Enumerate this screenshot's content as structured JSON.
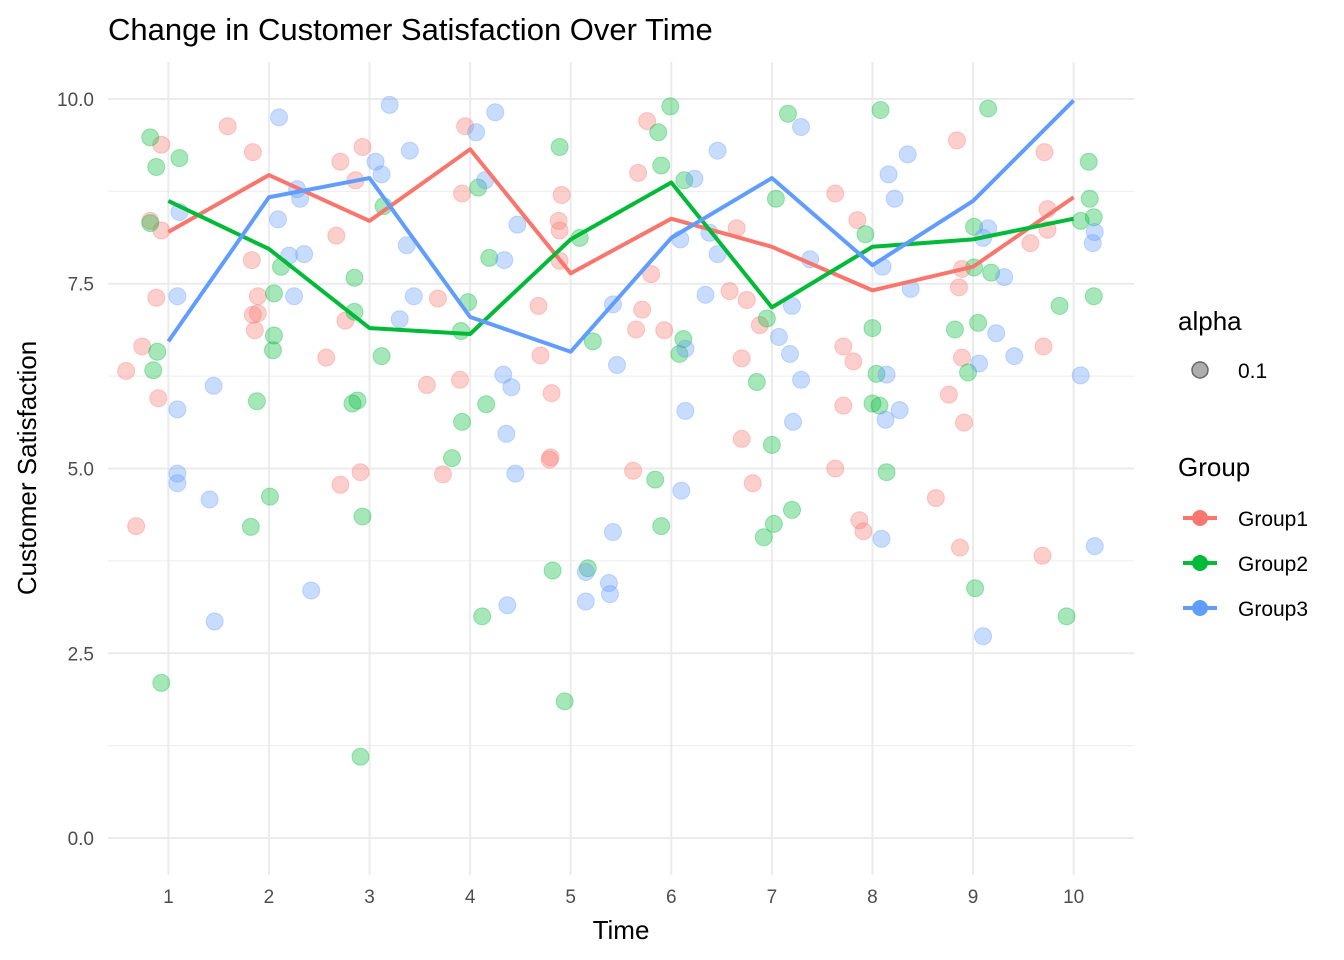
{
  "chart_data": {
    "type": "line",
    "title": "Change in Customer Satisfaction Over Time",
    "xlabel": "Time",
    "ylabel": "Customer Satisfaction",
    "x": [
      1,
      2,
      3,
      4,
      5,
      6,
      7,
      8,
      9,
      10
    ],
    "xlim": [
      0.4,
      10.6
    ],
    "ylim": [
      -0.5,
      10.5
    ],
    "xticks": [
      "1",
      "2",
      "3",
      "4",
      "5",
      "6",
      "7",
      "8",
      "9",
      "10"
    ],
    "yticks": [
      "0.0",
      "2.5",
      "5.0",
      "7.5",
      "10.0"
    ],
    "ytick_values": [
      0,
      2.5,
      5,
      7.5,
      10
    ],
    "grid": true,
    "legend_position": "right",
    "series": [
      {
        "name": "Group1",
        "color": "#F8766D",
        "values": [
          8.2,
          8.97,
          8.35,
          9.32,
          7.64,
          8.38,
          8.0,
          7.41,
          7.73,
          8.67
        ]
      },
      {
        "name": "Group2",
        "color": "#00BA38",
        "values": [
          8.62,
          7.97,
          6.9,
          6.82,
          8.1,
          8.87,
          7.18,
          8.0,
          8.1,
          8.38
        ]
      },
      {
        "name": "Group3",
        "color": "#619CFF",
        "values": [
          6.72,
          8.67,
          8.93,
          7.05,
          6.58,
          8.12,
          8.93,
          7.75,
          8.62,
          9.98
        ]
      }
    ],
    "points": [
      {
        "name": "Group1",
        "color": "#F8766D",
        "data": [
          [
            0.58,
            6.32
          ],
          [
            0.68,
            4.22
          ],
          [
            0.74,
            6.65
          ],
          [
            0.82,
            8.35
          ],
          [
            0.88,
            7.31
          ],
          [
            0.9,
            5.95
          ],
          [
            0.93,
            9.38
          ],
          [
            0.93,
            8.22
          ],
          [
            1.59,
            9.63
          ],
          [
            1.83,
            7.82
          ],
          [
            1.84,
            9.28
          ],
          [
            1.84,
            7.08
          ],
          [
            1.86,
            6.87
          ],
          [
            1.89,
            7.1
          ],
          [
            1.89,
            7.33
          ],
          [
            2.57,
            6.5
          ],
          [
            2.67,
            8.15
          ],
          [
            2.71,
            4.78
          ],
          [
            2.71,
            9.15
          ],
          [
            2.76,
            7.0
          ],
          [
            2.86,
            8.9
          ],
          [
            2.91,
            4.95
          ],
          [
            2.93,
            9.35
          ],
          [
            3.57,
            6.13
          ],
          [
            3.68,
            7.3
          ],
          [
            3.73,
            4.92
          ],
          [
            3.9,
            6.2
          ],
          [
            3.92,
            8.72
          ],
          [
            3.95,
            9.63
          ],
          [
            4.68,
            7.2
          ],
          [
            4.7,
            6.53
          ],
          [
            4.79,
            5.12
          ],
          [
            4.8,
            5.15
          ],
          [
            4.81,
            6.02
          ],
          [
            4.88,
            8.35
          ],
          [
            4.89,
            8.22
          ],
          [
            4.91,
            8.7
          ],
          [
            4.89,
            7.81
          ],
          [
            5.62,
            4.97
          ],
          [
            5.65,
            6.88
          ],
          [
            5.67,
            9.0
          ],
          [
            5.71,
            7.15
          ],
          [
            5.76,
            9.7
          ],
          [
            5.8,
            7.63
          ],
          [
            5.93,
            6.87
          ],
          [
            6.58,
            7.4
          ],
          [
            6.65,
            8.25
          ],
          [
            6.7,
            5.4
          ],
          [
            6.7,
            6.49
          ],
          [
            6.75,
            7.28
          ],
          [
            6.81,
            4.8
          ],
          [
            6.88,
            6.94
          ],
          [
            7.63,
            5.0
          ],
          [
            7.63,
            8.72
          ],
          [
            7.71,
            5.85
          ],
          [
            7.71,
            6.65
          ],
          [
            7.81,
            6.45
          ],
          [
            7.85,
            8.36
          ],
          [
            7.87,
            4.3
          ],
          [
            7.91,
            4.15
          ],
          [
            8.63,
            4.6
          ],
          [
            8.76,
            6.0
          ],
          [
            8.84,
            9.44
          ],
          [
            8.86,
            7.45
          ],
          [
            8.87,
            3.93
          ],
          [
            8.89,
            7.7
          ],
          [
            8.89,
            6.5
          ],
          [
            8.91,
            5.62
          ],
          [
            9.57,
            8.05
          ],
          [
            9.69,
            3.82
          ],
          [
            9.71,
            9.28
          ],
          [
            9.74,
            8.51
          ],
          [
            9.74,
            8.23
          ],
          [
            9.7,
            6.65
          ]
        ]
      },
      {
        "name": "Group2",
        "color": "#00BA38",
        "data": [
          [
            0.82,
            9.48
          ],
          [
            0.82,
            8.32
          ],
          [
            0.85,
            6.33
          ],
          [
            0.88,
            9.08
          ],
          [
            0.89,
            6.58
          ],
          [
            0.93,
            2.1
          ],
          [
            1.11,
            9.2
          ],
          [
            1.82,
            4.21
          ],
          [
            1.88,
            5.91
          ],
          [
            2.01,
            4.62
          ],
          [
            2.04,
            6.6
          ],
          [
            2.05,
            6.8
          ],
          [
            2.05,
            7.37
          ],
          [
            2.12,
            7.73
          ],
          [
            2.83,
            5.88
          ],
          [
            2.85,
            7.12
          ],
          [
            2.85,
            7.58
          ],
          [
            2.88,
            5.92
          ],
          [
            2.91,
            1.1
          ],
          [
            2.93,
            4.35
          ],
          [
            3.12,
            6.52
          ],
          [
            3.14,
            8.55
          ],
          [
            3.82,
            5.14
          ],
          [
            3.91,
            6.86
          ],
          [
            3.92,
            5.63
          ],
          [
            3.98,
            7.25
          ],
          [
            4.08,
            8.8
          ],
          [
            4.12,
            3.0
          ],
          [
            4.16,
            5.87
          ],
          [
            4.19,
            7.85
          ],
          [
            4.82,
            3.62
          ],
          [
            4.89,
            9.35
          ],
          [
            4.94,
            1.85
          ],
          [
            5.09,
            8.12
          ],
          [
            5.17,
            3.65
          ],
          [
            5.22,
            6.72
          ],
          [
            5.84,
            4.85
          ],
          [
            5.87,
            9.55
          ],
          [
            5.9,
            9.1
          ],
          [
            5.9,
            4.22
          ],
          [
            5.99,
            9.9
          ],
          [
            6.08,
            6.55
          ],
          [
            6.12,
            6.75
          ],
          [
            6.13,
            8.9
          ],
          [
            6.85,
            6.17
          ],
          [
            6.92,
            4.07
          ],
          [
            6.95,
            7.03
          ],
          [
            7.0,
            5.32
          ],
          [
            7.02,
            4.25
          ],
          [
            7.04,
            8.65
          ],
          [
            7.16,
            9.8
          ],
          [
            7.2,
            4.44
          ],
          [
            7.93,
            8.17
          ],
          [
            8.0,
            6.9
          ],
          [
            8.0,
            5.88
          ],
          [
            8.04,
            6.28
          ],
          [
            8.07,
            5.85
          ],
          [
            8.08,
            9.85
          ],
          [
            8.14,
            4.95
          ],
          [
            8.82,
            6.88
          ],
          [
            8.95,
            6.3
          ],
          [
            9.01,
            8.27
          ],
          [
            9.01,
            7.72
          ],
          [
            9.02,
            3.38
          ],
          [
            9.05,
            6.97
          ],
          [
            9.15,
            9.87
          ],
          [
            9.18,
            7.65
          ],
          [
            9.86,
            7.2
          ],
          [
            9.93,
            3.0
          ],
          [
            10.07,
            8.35
          ],
          [
            10.15,
            9.15
          ],
          [
            10.16,
            8.65
          ],
          [
            10.2,
            8.4
          ],
          [
            10.2,
            7.33
          ]
        ]
      },
      {
        "name": "Group3",
        "color": "#619CFF",
        "data": [
          [
            1.09,
            7.33
          ],
          [
            1.09,
            5.8
          ],
          [
            1.09,
            4.8
          ],
          [
            1.09,
            4.93
          ],
          [
            1.11,
            8.47
          ],
          [
            1.41,
            4.58
          ],
          [
            1.45,
            6.12
          ],
          [
            1.46,
            2.93
          ],
          [
            2.09,
            8.37
          ],
          [
            2.1,
            9.75
          ],
          [
            2.2,
            7.88
          ],
          [
            2.25,
            7.33
          ],
          [
            2.28,
            8.78
          ],
          [
            2.31,
            8.65
          ],
          [
            2.35,
            7.9
          ],
          [
            2.42,
            3.35
          ],
          [
            3.06,
            9.15
          ],
          [
            3.12,
            8.98
          ],
          [
            3.2,
            9.92
          ],
          [
            3.3,
            7.02
          ],
          [
            3.37,
            8.02
          ],
          [
            3.4,
            9.3
          ],
          [
            3.44,
            7.33
          ],
          [
            4.06,
            9.55
          ],
          [
            4.15,
            8.9
          ],
          [
            4.25,
            9.82
          ],
          [
            4.33,
            6.27
          ],
          [
            4.34,
            7.82
          ],
          [
            4.36,
            5.47
          ],
          [
            4.37,
            3.15
          ],
          [
            4.41,
            6.1
          ],
          [
            4.45,
            4.93
          ],
          [
            4.47,
            8.3
          ],
          [
            5.15,
            3.2
          ],
          [
            5.15,
            3.6
          ],
          [
            5.38,
            3.45
          ],
          [
            5.39,
            3.3
          ],
          [
            5.42,
            4.14
          ],
          [
            5.42,
            7.22
          ],
          [
            5.46,
            6.4
          ],
          [
            6.09,
            8.1
          ],
          [
            6.1,
            4.7
          ],
          [
            6.14,
            5.78
          ],
          [
            6.14,
            6.62
          ],
          [
            6.23,
            8.92
          ],
          [
            6.34,
            7.35
          ],
          [
            6.38,
            8.19
          ],
          [
            6.46,
            9.3
          ],
          [
            6.46,
            7.9
          ],
          [
            7.07,
            6.78
          ],
          [
            7.18,
            6.55
          ],
          [
            7.2,
            7.2
          ],
          [
            7.21,
            5.63
          ],
          [
            7.29,
            9.62
          ],
          [
            7.29,
            6.2
          ],
          [
            7.38,
            7.83
          ],
          [
            8.09,
            4.05
          ],
          [
            8.1,
            7.73
          ],
          [
            8.13,
            5.66
          ],
          [
            8.14,
            6.27
          ],
          [
            8.16,
            8.98
          ],
          [
            8.22,
            8.65
          ],
          [
            8.27,
            5.79
          ],
          [
            8.35,
            9.25
          ],
          [
            8.38,
            7.43
          ],
          [
            9.06,
            6.42
          ],
          [
            9.1,
            2.73
          ],
          [
            9.1,
            8.12
          ],
          [
            9.15,
            8.25
          ],
          [
            9.23,
            6.83
          ],
          [
            9.31,
            7.59
          ],
          [
            9.41,
            6.52
          ],
          [
            10.07,
            6.26
          ],
          [
            10.19,
            8.05
          ],
          [
            10.21,
            3.95
          ],
          [
            10.21,
            8.2
          ]
        ]
      }
    ],
    "legend": {
      "alpha_title": "alpha",
      "alpha_label": "0.1",
      "group_title": "Group",
      "entries": [
        "Group1",
        "Group2",
        "Group3"
      ]
    }
  }
}
